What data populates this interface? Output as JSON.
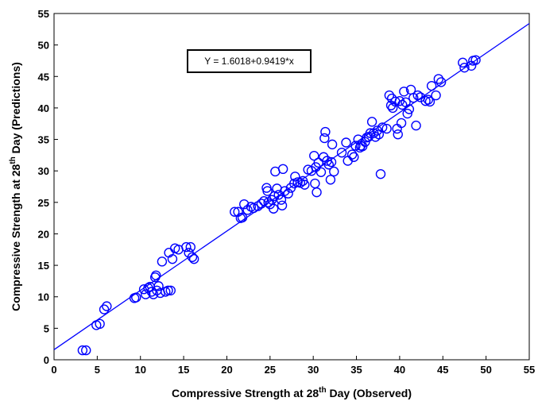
{
  "chart_data": {
    "type": "scatter",
    "xlabel": {
      "prefix": "Compressive Strength at 28",
      "sup": "th",
      "suffix": " Day (Observed)"
    },
    "ylabel": {
      "prefix": "Compressive Strength at 28",
      "sup": "th",
      "suffix": " Day (Predictions)"
    },
    "xlim": [
      0,
      55
    ],
    "ylim": [
      0,
      55
    ],
    "xticks": [
      "0",
      "5",
      "10",
      "15",
      "20",
      "25",
      "30",
      "35",
      "40",
      "45",
      "50",
      "55"
    ],
    "yticks": [
      "0",
      "5",
      "10",
      "15",
      "20",
      "25",
      "30",
      "35",
      "40",
      "45",
      "50",
      "55"
    ],
    "grid": false,
    "marker": "open-circle",
    "color": "#0000ff",
    "fit_line": {
      "intercept": 1.6018,
      "slope": 0.9419,
      "label": "Y = 1.6018+0.9419*x"
    },
    "points": [
      [
        3.3,
        1.5
      ],
      [
        3.7,
        1.5
      ],
      [
        4.9,
        5.5
      ],
      [
        5.3,
        5.7
      ],
      [
        5.8,
        8.0
      ],
      [
        6.1,
        8.5
      ],
      [
        9.3,
        9.8
      ],
      [
        9.5,
        9.9
      ],
      [
        10.4,
        11.2
      ],
      [
        10.6,
        10.4
      ],
      [
        10.9,
        11.4
      ],
      [
        11.1,
        11.6
      ],
      [
        11.3,
        10.8
      ],
      [
        11.5,
        10.4
      ],
      [
        11.7,
        13.1
      ],
      [
        11.8,
        13.4
      ],
      [
        11.9,
        11.0
      ],
      [
        12.1,
        11.7
      ],
      [
        12.3,
        10.6
      ],
      [
        12.5,
        15.6
      ],
      [
        12.9,
        10.8
      ],
      [
        13.2,
        11.0
      ],
      [
        13.3,
        17.0
      ],
      [
        13.5,
        11.0
      ],
      [
        13.7,
        16.0
      ],
      [
        14.0,
        17.7
      ],
      [
        14.4,
        17.5
      ],
      [
        15.3,
        17.9
      ],
      [
        15.6,
        17.0
      ],
      [
        15.8,
        17.9
      ],
      [
        16.0,
        16.3
      ],
      [
        16.2,
        16.0
      ],
      [
        20.9,
        23.5
      ],
      [
        21.3,
        23.5
      ],
      [
        21.6,
        22.5
      ],
      [
        21.8,
        22.6
      ],
      [
        22.0,
        24.7
      ],
      [
        22.4,
        23.8
      ],
      [
        22.8,
        24.3
      ],
      [
        23.1,
        24.1
      ],
      [
        23.6,
        24.4
      ],
      [
        24.0,
        24.8
      ],
      [
        24.3,
        25.2
      ],
      [
        24.6,
        27.3
      ],
      [
        24.7,
        26.8
      ],
      [
        24.8,
        25.0
      ],
      [
        25.0,
        24.7
      ],
      [
        25.2,
        25.4
      ],
      [
        25.4,
        24.0
      ],
      [
        25.5,
        26.0
      ],
      [
        25.6,
        29.9
      ],
      [
        25.8,
        27.2
      ],
      [
        26.0,
        26.2
      ],
      [
        26.3,
        25.4
      ],
      [
        26.4,
        24.5
      ],
      [
        26.5,
        30.3
      ],
      [
        26.7,
        26.8
      ],
      [
        27.1,
        26.4
      ],
      [
        27.4,
        27.3
      ],
      [
        27.8,
        28.0
      ],
      [
        27.9,
        29.1
      ],
      [
        28.2,
        28.2
      ],
      [
        28.5,
        28.1
      ],
      [
        28.8,
        28.4
      ],
      [
        29.0,
        27.8
      ],
      [
        29.4,
        30.2
      ],
      [
        29.8,
        30.0
      ],
      [
        30.1,
        32.4
      ],
      [
        30.2,
        28.0
      ],
      [
        30.3,
        30.6
      ],
      [
        30.4,
        26.6
      ],
      [
        30.6,
        31.3
      ],
      [
        30.9,
        29.8
      ],
      [
        31.2,
        32.2
      ],
      [
        31.3,
        35.2
      ],
      [
        31.4,
        36.2
      ],
      [
        31.6,
        31.6
      ],
      [
        31.8,
        31.0
      ],
      [
        32.0,
        28.6
      ],
      [
        32.1,
        31.4
      ],
      [
        32.2,
        34.2
      ],
      [
        32.4,
        29.9
      ],
      [
        33.3,
        32.9
      ],
      [
        33.8,
        34.5
      ],
      [
        34.0,
        31.6
      ],
      [
        34.5,
        32.6
      ],
      [
        34.7,
        32.2
      ],
      [
        34.9,
        34.0
      ],
      [
        35.2,
        35.0
      ],
      [
        35.4,
        33.7
      ],
      [
        35.5,
        34.0
      ],
      [
        35.7,
        33.9
      ],
      [
        36.0,
        34.6
      ],
      [
        36.2,
        35.3
      ],
      [
        36.4,
        35.4
      ],
      [
        36.6,
        36.0
      ],
      [
        36.8,
        37.8
      ],
      [
        37.0,
        36.0
      ],
      [
        37.2,
        35.4
      ],
      [
        37.4,
        36.4
      ],
      [
        37.6,
        35.8
      ],
      [
        37.8,
        29.5
      ],
      [
        38.0,
        36.9
      ],
      [
        38.5,
        36.7
      ],
      [
        38.8,
        42.0
      ],
      [
        39.0,
        40.4
      ],
      [
        39.1,
        41.5
      ],
      [
        39.2,
        40.0
      ],
      [
        39.5,
        41.0
      ],
      [
        39.7,
        36.7
      ],
      [
        39.8,
        35.8
      ],
      [
        40.0,
        41.1
      ],
      [
        40.2,
        37.6
      ],
      [
        40.3,
        40.5
      ],
      [
        40.5,
        42.6
      ],
      [
        40.7,
        40.9
      ],
      [
        40.9,
        39.1
      ],
      [
        41.1,
        39.8
      ],
      [
        41.3,
        42.9
      ],
      [
        41.6,
        41.6
      ],
      [
        41.9,
        37.2
      ],
      [
        42.1,
        42.0
      ],
      [
        42.4,
        41.7
      ],
      [
        43.0,
        41.1
      ],
      [
        43.3,
        41.3
      ],
      [
        43.5,
        41.0
      ],
      [
        43.7,
        43.5
      ],
      [
        44.2,
        42.0
      ],
      [
        44.5,
        44.6
      ],
      [
        44.8,
        44.1
      ],
      [
        47.3,
        47.2
      ],
      [
        47.5,
        46.4
      ],
      [
        48.3,
        46.7
      ],
      [
        48.5,
        47.5
      ],
      [
        48.8,
        47.6
      ]
    ]
  }
}
